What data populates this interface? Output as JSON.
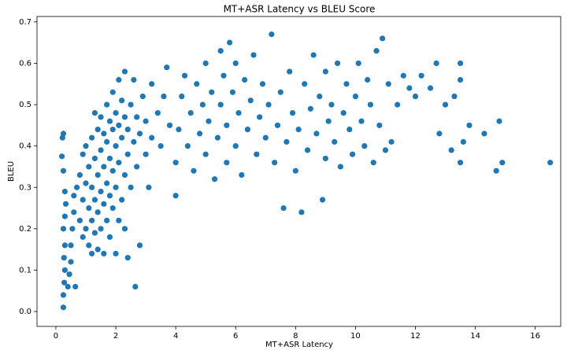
{
  "chart_data": {
    "type": "scatter",
    "title": "MT+ASR Latency vs BLEU Score",
    "x_label": "MT+ASR Latency",
    "y_label": "BLEU",
    "color": "#1f77b4",
    "xlim": [
      -0.63,
      16.85
    ],
    "ylim": [
      -0.036,
      0.713
    ],
    "xticks": [
      0,
      2,
      4,
      6,
      8,
      10,
      12,
      14,
      16
    ],
    "yticks": [
      {
        "value": 0,
        "label": "0.0"
      },
      0.1,
      0.2,
      0.3,
      0.4,
      0.5,
      0.6,
      0.7
    ],
    "x": [
      0.25,
      0.25,
      0.28,
      0.3,
      0.27,
      0.3,
      0.25,
      0.3,
      0.33,
      0.3,
      0.25,
      0.2,
      0.22,
      0.25,
      0.4,
      0.45,
      0.5,
      0.5,
      0.55,
      0.6,
      0.6,
      0.65,
      0.7,
      0.8,
      0.8,
      0.9,
      0.9,
      0.9,
      1.0,
      1.0,
      1.0,
      1.1,
      1.1,
      1.1,
      1.2,
      1.2,
      1.2,
      1.2,
      1.3,
      1.3,
      1.3,
      1.3,
      1.4,
      1.4,
      1.4,
      1.4,
      1.5,
      1.5,
      1.5,
      1.5,
      1.6,
      1.6,
      1.6,
      1.6,
      1.7,
      1.7,
      1.7,
      1.7,
      1.8,
      1.8,
      1.8,
      1.8,
      1.9,
      1.9,
      1.9,
      1.9,
      2.0,
      2.0,
      2.0,
      2.0,
      2.1,
      2.1,
      2.1,
      2.1,
      2.2,
      2.2,
      2.2,
      2.3,
      2.3,
      2.3,
      2.3,
      2.4,
      2.4,
      2.4,
      2.5,
      2.5,
      2.6,
      2.6,
      2.65,
      2.7,
      2.7,
      2.8,
      2.8,
      2.9,
      3.0,
      3.0,
      3.1,
      3.2,
      3.2,
      3.4,
      3.5,
      3.6,
      3.7,
      3.8,
      4.0,
      4.0,
      4.1,
      4.2,
      4.3,
      4.4,
      4.5,
      4.6,
      4.7,
      4.8,
      4.9,
      5.0,
      5.0,
      5.1,
      5.2,
      5.3,
      5.4,
      5.5,
      5.5,
      5.6,
      5.7,
      5.7,
      5.8,
      5.9,
      6.0,
      6.0,
      6.1,
      6.2,
      6.3,
      6.4,
      6.5,
      6.6,
      6.7,
      6.8,
      6.9,
      7.0,
      7.1,
      7.2,
      7.3,
      7.4,
      7.5,
      7.6,
      7.7,
      7.8,
      7.9,
      8.0,
      8.1,
      8.2,
      8.3,
      8.4,
      8.5,
      8.6,
      8.7,
      8.8,
      8.9,
      9.0,
      9.0,
      9.1,
      9.2,
      9.3,
      9.4,
      9.5,
      9.6,
      9.7,
      9.8,
      9.9,
      10.0,
      10.1,
      10.2,
      10.3,
      10.4,
      10.5,
      10.6,
      10.7,
      10.8,
      10.9,
      11.0,
      11.1,
      11.2,
      11.4,
      11.6,
      11.8,
      12.0,
      12.2,
      12.5,
      12.7,
      12.8,
      13.0,
      13.2,
      13.3,
      13.5,
      13.5,
      13.5,
      13.6,
      13.8,
      14.3,
      14.7,
      14.8,
      14.9,
      16.5
    ],
    "y": [
      0.01,
      0.04,
      0.07,
      0.1,
      0.13,
      0.16,
      0.2,
      0.23,
      0.26,
      0.29,
      0.34,
      0.375,
      0.42,
      0.43,
      0.06,
      0.09,
      0.12,
      0.16,
      0.2,
      0.24,
      0.28,
      0.06,
      0.3,
      0.22,
      0.33,
      0.18,
      0.27,
      0.38,
      0.2,
      0.31,
      0.4,
      0.16,
      0.25,
      0.35,
      0.14,
      0.22,
      0.3,
      0.42,
      0.19,
      0.27,
      0.37,
      0.48,
      0.15,
      0.24,
      0.33,
      0.44,
      0.2,
      0.29,
      0.39,
      0.47,
      0.14,
      0.26,
      0.35,
      0.43,
      0.22,
      0.31,
      0.41,
      0.5,
      0.18,
      0.28,
      0.37,
      0.46,
      0.25,
      0.34,
      0.44,
      0.53,
      0.14,
      0.3,
      0.4,
      0.48,
      0.22,
      0.36,
      0.45,
      0.56,
      0.27,
      0.42,
      0.51,
      0.2,
      0.33,
      0.47,
      0.58,
      0.13,
      0.38,
      0.44,
      0.3,
      0.5,
      0.41,
      0.56,
      0.06,
      0.35,
      0.47,
      0.16,
      0.43,
      0.52,
      0.38,
      0.46,
      0.3,
      0.42,
      0.55,
      0.48,
      0.4,
      0.52,
      0.59,
      0.45,
      0.28,
      0.36,
      0.44,
      0.52,
      0.57,
      0.4,
      0.48,
      0.34,
      0.55,
      0.43,
      0.5,
      0.6,
      0.38,
      0.46,
      0.53,
      0.32,
      0.42,
      0.63,
      0.5,
      0.57,
      0.36,
      0.45,
      0.65,
      0.53,
      0.4,
      0.6,
      0.48,
      0.33,
      0.56,
      0.44,
      0.51,
      0.62,
      0.38,
      0.47,
      0.55,
      0.42,
      0.5,
      0.67,
      0.36,
      0.45,
      0.53,
      0.25,
      0.41,
      0.58,
      0.48,
      0.34,
      0.44,
      0.24,
      0.55,
      0.39,
      0.49,
      0.62,
      0.43,
      0.52,
      0.27,
      0.37,
      0.58,
      0.46,
      0.5,
      0.41,
      0.6,
      0.35,
      0.48,
      0.55,
      0.44,
      0.38,
      0.52,
      0.6,
      0.46,
      0.4,
      0.56,
      0.5,
      0.36,
      0.63,
      0.45,
      0.66,
      0.39,
      0.55,
      0.41,
      0.5,
      0.57,
      0.54,
      0.52,
      0.57,
      0.54,
      0.6,
      0.43,
      0.5,
      0.39,
      0.52,
      0.6,
      0.56,
      0.36,
      0.41,
      0.45,
      0.43,
      0.34,
      0.46,
      0.36,
      0.36
    ]
  }
}
